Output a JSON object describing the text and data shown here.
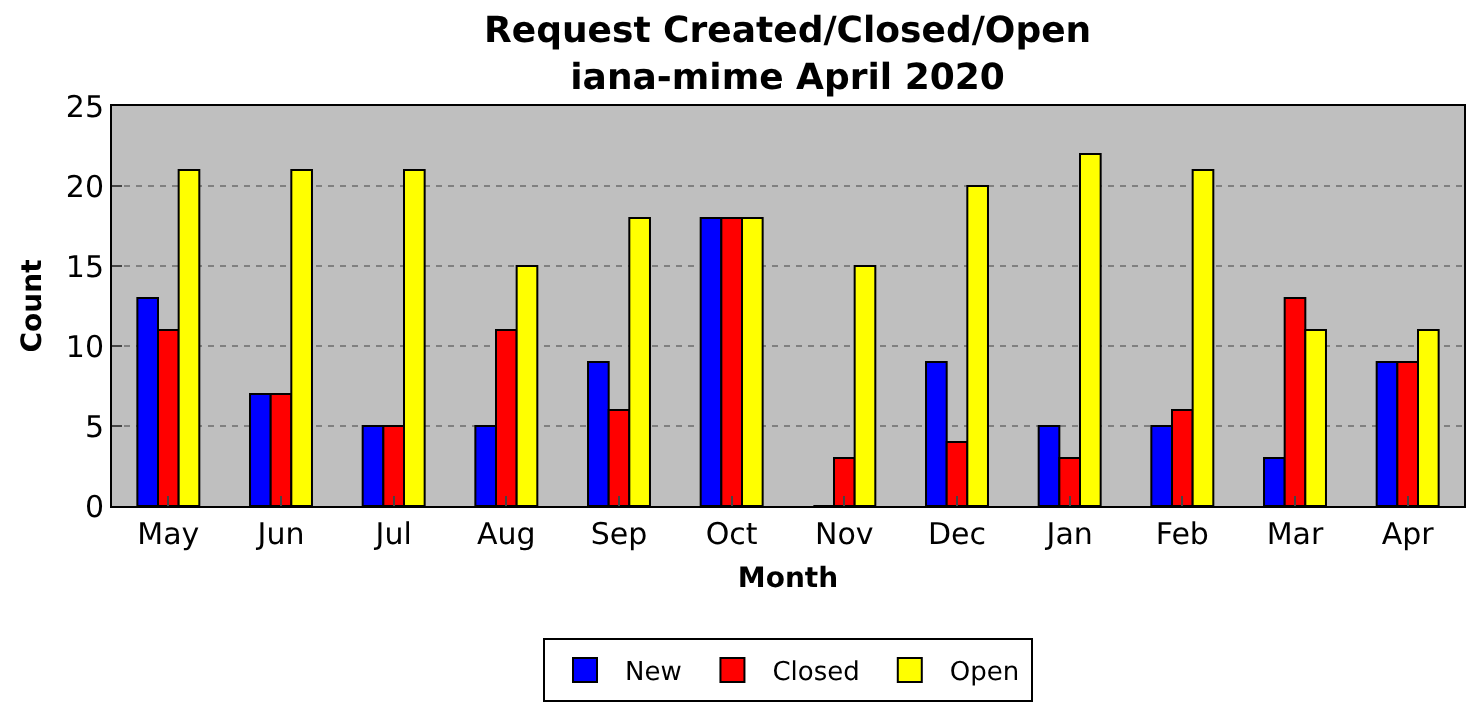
{
  "chart_data": {
    "type": "bar",
    "title": "Request Created/Closed/Open\niana-mime April 2020",
    "xlabel": "Month",
    "ylabel": "Count",
    "categories": [
      "May",
      "Jun",
      "Jul",
      "Aug",
      "Sep",
      "Oct",
      "Nov",
      "Dec",
      "Jan",
      "Feb",
      "Mar",
      "Apr"
    ],
    "series": [
      {
        "name": "New",
        "color": "#0000ff",
        "values": [
          13,
          7,
          5,
          5,
          9,
          18,
          0,
          9,
          5,
          5,
          3,
          9
        ]
      },
      {
        "name": "Closed",
        "color": "#ff0000",
        "values": [
          11,
          7,
          5,
          11,
          6,
          18,
          3,
          4,
          3,
          6,
          13,
          9
        ]
      },
      {
        "name": "Open",
        "color": "#ffff00",
        "values": [
          21,
          21,
          21,
          15,
          18,
          18,
          15,
          20,
          22,
          21,
          11,
          11
        ]
      }
    ],
    "ylim": [
      0,
      25
    ],
    "yticks": [
      0,
      5,
      10,
      15,
      20,
      25
    ],
    "grid": "y",
    "legend": "bottom"
  }
}
